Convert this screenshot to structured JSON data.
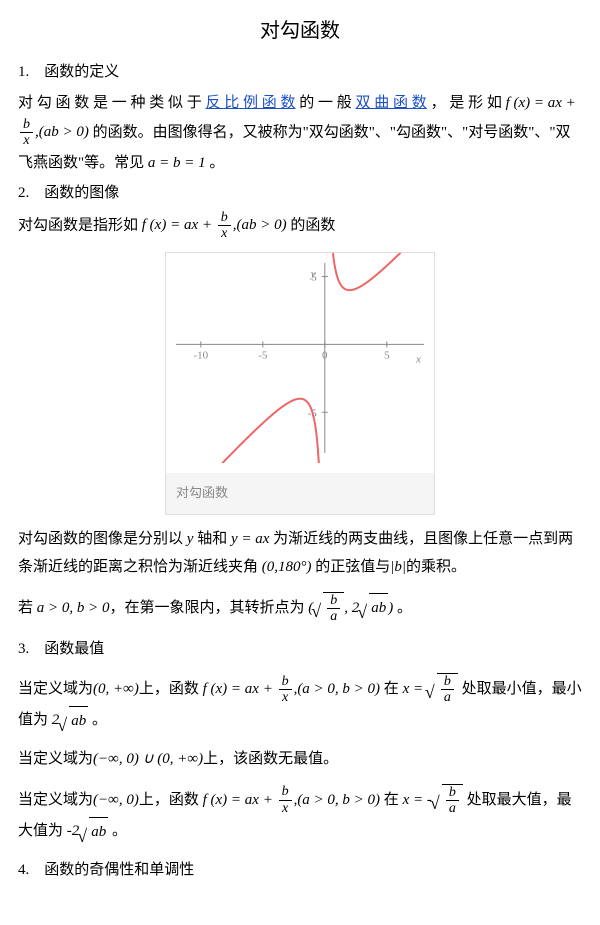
{
  "title": "对勾函数",
  "s1": {
    "head": "1.　函数的定义",
    "t1a": "对 勾 函 数 是 一 种 类 似 于 ",
    "link1": "反 比 例 函 数",
    "t1b": " 的 一 般 ",
    "link2": "双 曲 函 数",
    "t1c": " ， 是 形 如",
    "t2a": " 的函数。由图像得名，又被称为\"双勾函数\"、\"勾函数\"、\"对号函数\"、\"双飞燕函数\"等。常见 ",
    "t2b": " 。"
  },
  "formula": {
    "fx": "f (x) = ax + ",
    "b": "b",
    "x": "x",
    "cond": ",(ab > 0)",
    "cond2": ",(a > 0, b > 0)",
    "ab1": "a = b = 1",
    "y": "y",
    "yax": "y = ax",
    "angle": "(0,180°)",
    "absb": "|b|",
    "a_gt": "a > 0, b > 0",
    "ba_num": "b",
    "ba_den": "a",
    "two_sqrt_ab": "2",
    "ab": "ab",
    "xeq": "x = ",
    "xeqneg": "x = -",
    "neg2": "-2",
    "dom1": "(0, +∞)",
    "dom2": "(−∞, 0) ∪ (0, +∞)",
    "dom3": "(−∞, 0)"
  },
  "s2": {
    "head": "2.　函数的图像",
    "t1": "对勾函数是指形如 ",
    "t2": " 的函数"
  },
  "chart": {
    "caption": "对勾函数",
    "bg": "#ffffff",
    "axis_color": "#888888",
    "tick_color": "#888888",
    "line_color": "#ee6666",
    "line_width": 2,
    "xlim": [
      -12,
      8
    ],
    "ylim": [
      -8,
      6
    ],
    "xticks": [
      -10,
      -5,
      0,
      5
    ],
    "yticks": [
      -5,
      5
    ],
    "xlabel": "x",
    "ylabel": "y",
    "label_fontsize": 11,
    "a": 1,
    "b": 4
  },
  "s_desc": {
    "t1a": "对勾函数的图像是分别以 ",
    "t1b": " 轴和 ",
    "t1c": " 为渐近线的两支曲线，且图像上任意一点到两条渐近线的距离之积恰为渐近线夹角 ",
    "t1d": " 的正弦值与",
    "t1e": "的乘积。",
    "t2a": "若 ",
    "t2b": "，在第一象限内，其转折点为 ",
    "t2c": " 。"
  },
  "s3": {
    "head": "3.　函数最值",
    "t1a": "当定义域为",
    "t1b": "上，函数 ",
    "t1c": " 在 ",
    "t1d": " 处取最小值，最小值为 ",
    "t1e": " 。",
    "t2a": "当定义域为",
    "t2b": "上，该函数无最值。",
    "t3a": "当定义域为",
    "t3b": "上，函数 ",
    "t3c": " 在 ",
    "t3d": " 处取最大值，最大值为 ",
    "t3e": " 。"
  },
  "s4": {
    "head": "4.　函数的奇偶性和单调性"
  }
}
